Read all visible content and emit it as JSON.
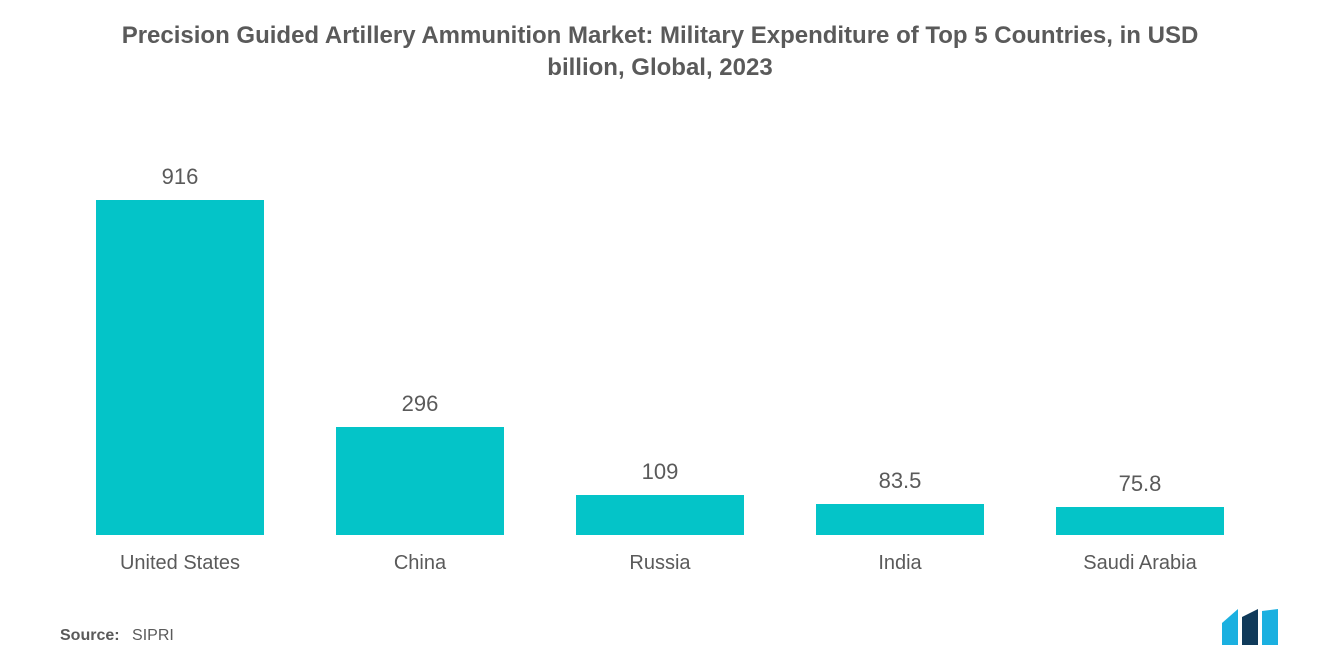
{
  "chart": {
    "type": "bar",
    "title": "Precision Guided Artillery Ammunition Market: Military Expenditure of Top 5 Countries, in USD billion, Global, 2023",
    "title_fontsize": 24,
    "title_color": "#5a5a5a",
    "categories": [
      "United States",
      "China",
      "Russia",
      "India",
      "Saudi Arabia"
    ],
    "values": [
      916,
      296,
      109,
      83.5,
      75.8
    ],
    "value_labels": [
      "916",
      "296",
      "109",
      "83.5",
      "75.8"
    ],
    "bar_color": "#04c4c8",
    "value_label_color": "#5a5a5a",
    "value_label_fontsize": 22,
    "x_label_color": "#5a5a5a",
    "x_label_fontsize": 20,
    "background_color": "#ffffff",
    "max_value": 916,
    "bar_width_pct": 70
  },
  "source": {
    "label": "Source:",
    "text": "SIPRI",
    "color": "#5a5a5a",
    "fontsize": 16
  },
  "logo": {
    "bar1_color": "#1bb0e0",
    "bar2_color": "#103a5a",
    "bar3_color": "#1bb0e0"
  }
}
